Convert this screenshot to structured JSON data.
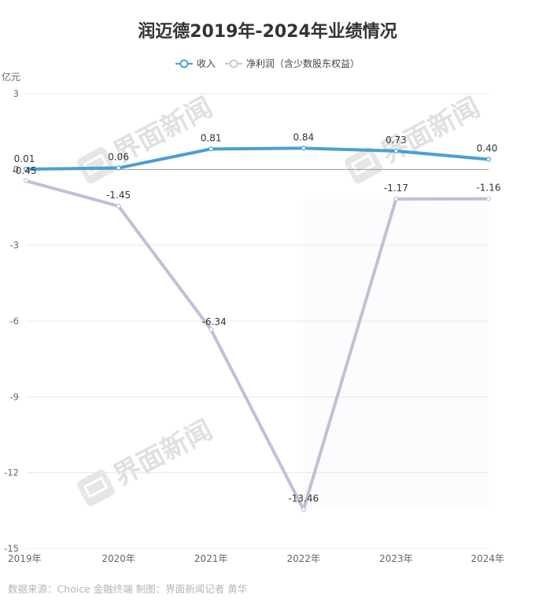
{
  "title": "润迈德2019年-2024年业绩情况",
  "unit": "亿元",
  "legend": [
    {
      "label": "收入",
      "color": "#4a9fd4",
      "icon": "circle-line-icon"
    },
    {
      "label": "净利润（含少数股东权益）",
      "color": "#c4bdd8",
      "icon": "circle-line-icon"
    }
  ],
  "footer": "数据来源：Choice 金融终端 制图：界面新闻记者 黄华",
  "watermark": "界面新闻",
  "chart_data": {
    "type": "line",
    "title": "润迈德2019年-2024年业绩情况",
    "xlabel": "",
    "ylabel": "亿元",
    "categories": [
      "2019年",
      "2020年",
      "2021年",
      "2022年",
      "2023年",
      "2024年"
    ],
    "series": [
      {
        "name": "收入",
        "values": [
          0.01,
          0.06,
          0.81,
          0.84,
          0.73,
          0.4
        ],
        "color": "#4a9fd4"
      },
      {
        "name": "净利润（含少数股东权益）",
        "values": [
          -0.45,
          -1.45,
          -6.34,
          -13.46,
          -1.17,
          -1.16
        ],
        "color": "#c4bdd8"
      }
    ],
    "yticks": [
      3,
      0,
      -3,
      -6,
      -9,
      -12,
      -15
    ],
    "ylim": [
      -15,
      3
    ],
    "grid": true,
    "legend_position": "top"
  }
}
